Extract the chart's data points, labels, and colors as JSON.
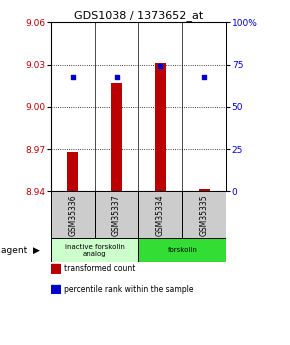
{
  "title": "GDS1038 / 1373652_at",
  "samples": [
    "GSM35336",
    "GSM35337",
    "GSM35334",
    "GSM35335"
  ],
  "bar_values": [
    8.968,
    9.017,
    9.031,
    8.942
  ],
  "bar_base": 8.94,
  "percentile_values": [
    68,
    68,
    74,
    68
  ],
  "ylim": [
    8.94,
    9.06
  ],
  "y_ticks_left": [
    8.94,
    8.97,
    9.0,
    9.03,
    9.06
  ],
  "y_ticks_right": [
    0,
    25,
    50,
    75,
    100
  ],
  "bar_color": "#bb0000",
  "percentile_color": "#0000cc",
  "agent_groups": [
    {
      "label": "inactive forskolin\nanalog",
      "color": "#ccffcc",
      "span": [
        0,
        2
      ]
    },
    {
      "label": "forskolin",
      "color": "#33dd33",
      "span": [
        2,
        4
      ]
    }
  ],
  "legend_items": [
    {
      "color": "#bb0000",
      "label": "transformed count"
    },
    {
      "color": "#0000cc",
      "label": "percentile rank within the sample"
    }
  ],
  "sample_box_color": "#cccccc"
}
